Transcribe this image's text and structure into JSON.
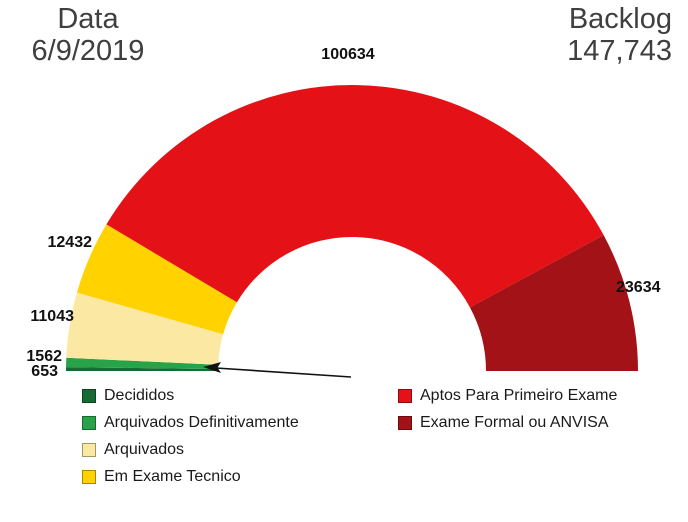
{
  "header": {
    "date_label": "Data",
    "date_value": "6/9/2019",
    "backlog_label": "Backlog",
    "backlog_value": "147,743"
  },
  "chart_data": {
    "type": "pie",
    "variant": "half-donut-gauge",
    "orientation": "semicircle-top",
    "legend_position": "bottom-two-columns",
    "segments": [
      {
        "label": "Decididos",
        "value": 653,
        "color": "#156b33"
      },
      {
        "label": "Arquivados Definitivamente",
        "value": 1562,
        "color": "#29a349"
      },
      {
        "label": "Arquivados",
        "value": 11043,
        "color": "#fbe8a2"
      },
      {
        "label": "Em Exame Tecnico",
        "value": 12432,
        "color": "#ffd200"
      },
      {
        "label": "Aptos Para Primeiro Exame",
        "value": 100634,
        "color": "#e41217"
      },
      {
        "label": "Exame Formal ou ANVISA",
        "value": 23634,
        "color": "#a31216"
      }
    ]
  }
}
